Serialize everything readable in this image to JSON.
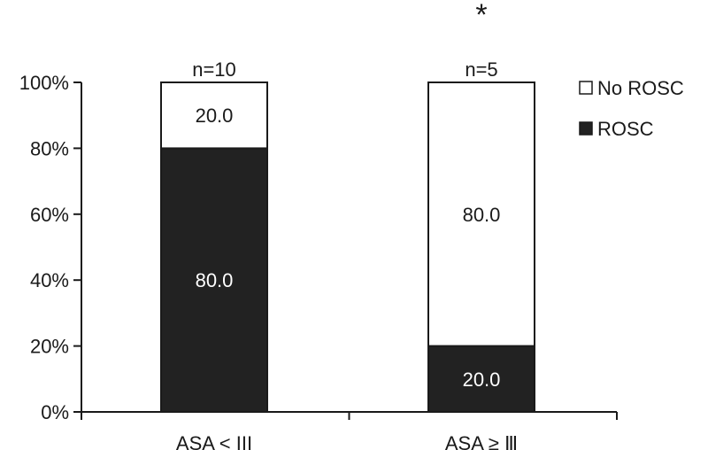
{
  "chart_data": {
    "type": "bar",
    "stacked": true,
    "categories": [
      "ASA < III",
      "ASA ≥ Ⅲ"
    ],
    "sample_sizes": [
      "n=10",
      "n=5"
    ],
    "series": [
      {
        "name": "ROSC",
        "values": [
          80.0,
          20.0
        ],
        "labels": [
          "80.0",
          "20.0"
        ],
        "color": "#222222",
        "label_color": "#ffffff"
      },
      {
        "name": "No ROSC",
        "values": [
          20.0,
          80.0
        ],
        "labels": [
          "20.0",
          "80.0"
        ],
        "color": "#ffffff",
        "label_color": "#1a1a1a"
      }
    ],
    "ylim": [
      0,
      100
    ],
    "yticks": [
      0,
      20,
      40,
      60,
      80,
      100
    ],
    "ytick_labels": [
      "0%",
      "20%",
      "40%",
      "60%",
      "80%",
      "100%"
    ],
    "legend": {
      "placement": "top-right",
      "order": [
        "No ROSC",
        "ROSC"
      ]
    },
    "annotation": {
      "text": "*",
      "category_index": 1
    },
    "grid": false
  }
}
